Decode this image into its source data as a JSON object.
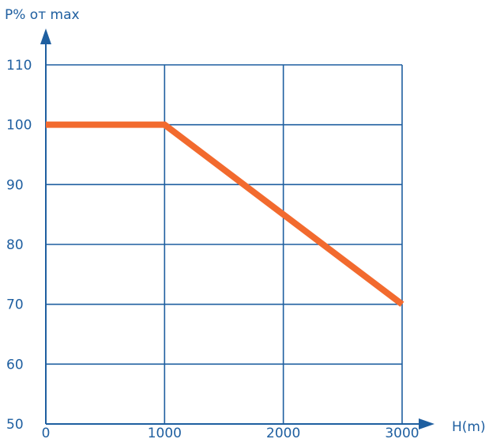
{
  "chart_data": {
    "type": "line",
    "xlabel": "H(m)",
    "ylabel": "P% от max",
    "xlim": [
      0,
      3000
    ],
    "ylim": [
      50,
      110
    ],
    "x_ticks": [
      0,
      1000,
      2000,
      3000
    ],
    "y_ticks": [
      50,
      60,
      70,
      80,
      90,
      100,
      110
    ],
    "grid": true,
    "colors": {
      "axis": "#1f5fa0",
      "line": "#f26a2e"
    },
    "series": [
      {
        "x": [
          0,
          1000,
          3000
        ],
        "y": [
          100,
          100,
          70
        ]
      }
    ]
  }
}
